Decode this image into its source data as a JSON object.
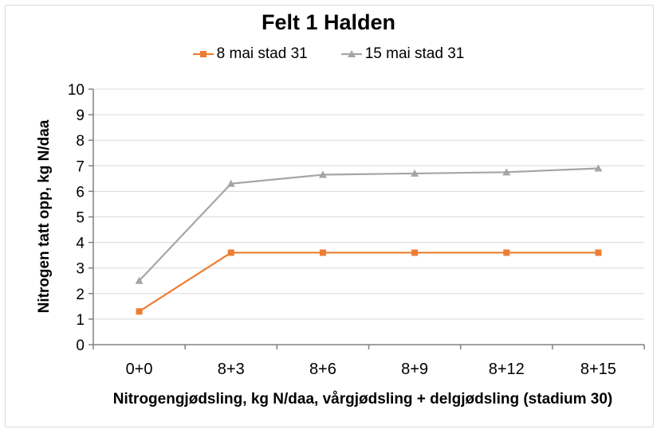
{
  "chart_data": {
    "type": "line",
    "title": "Felt 1 Halden",
    "categories": [
      "0+0",
      "8+3",
      "8+6",
      "8+9",
      "8+12",
      "8+15"
    ],
    "series": [
      {
        "name": "8 mai stad 31",
        "color": "#ED7D31",
        "marker": "square",
        "values": [
          1.3,
          3.6,
          3.6,
          3.6,
          3.6,
          3.6
        ]
      },
      {
        "name": "15 mai stad 31",
        "color": "#A5A5A5",
        "marker": "triangle",
        "values": [
          2.5,
          6.3,
          6.65,
          6.7,
          6.75,
          6.9
        ]
      }
    ],
    "xlabel": "Nitrogengjødsling, kg N/daa, vårgjødsling + delgjødsling (stadium 30)",
    "ylabel": "Nitrogen tatt opp, kg N/daa",
    "ylim": [
      0,
      10
    ],
    "ytick_step": 1,
    "yticks": [
      0,
      1,
      2,
      3,
      4,
      5,
      6,
      7,
      8,
      9,
      10
    ],
    "grid": "horizontal",
    "legend_position": "top",
    "colors": {
      "gridline": "#D9D9D9",
      "axis": "#808080",
      "text": "#000000",
      "background": "#FFFFFF",
      "border": "#D9D9D9"
    }
  }
}
